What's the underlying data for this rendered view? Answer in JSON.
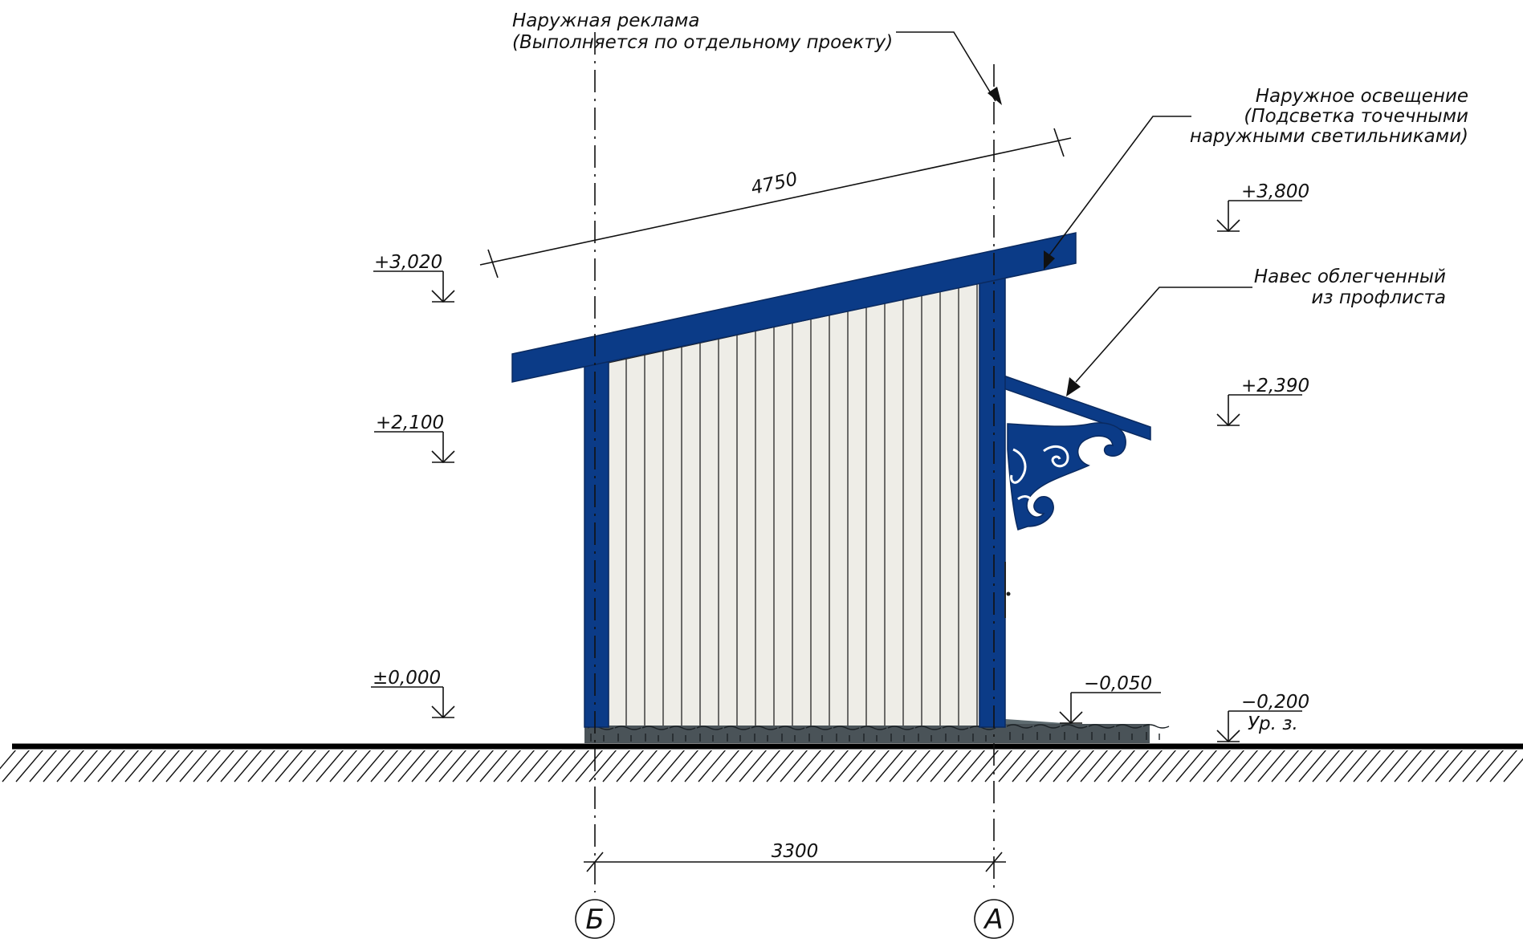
{
  "annotations": {
    "advertising_line1": "Наружная реклама",
    "advertising_line2": "(Выполняется по отдельному проекту)",
    "lighting_line1": "Наружное освещение",
    "lighting_line2": "(Подсветка точечными",
    "lighting_line3": "наружными светильниками)",
    "canopy_line1": "Навес облегченный",
    "canopy_line2": "из профлиста"
  },
  "elevation_marks": {
    "roof_left": "+3,020",
    "roof_right": "+3,800",
    "wall_top": "+2,100",
    "canopy": "+2,390",
    "floor_zero": "±0,000",
    "paving": "−0,050",
    "ground": "−0,200",
    "ground_label": "Ур. з."
  },
  "dimensions": {
    "roof_length": "4750",
    "axis_span": "3300"
  },
  "axes": {
    "left": "Б",
    "right": "А"
  },
  "colors": {
    "structure_blue": "#0b3b87",
    "wall_panel": "#eeede7",
    "paving": "#4a5358",
    "lines": "#111111"
  },
  "icons": {
    "elevation_marker": "elevation-triangle-icon",
    "leader_arrow": "arrow-icon",
    "axis_bubble": "axis-circle-icon"
  }
}
